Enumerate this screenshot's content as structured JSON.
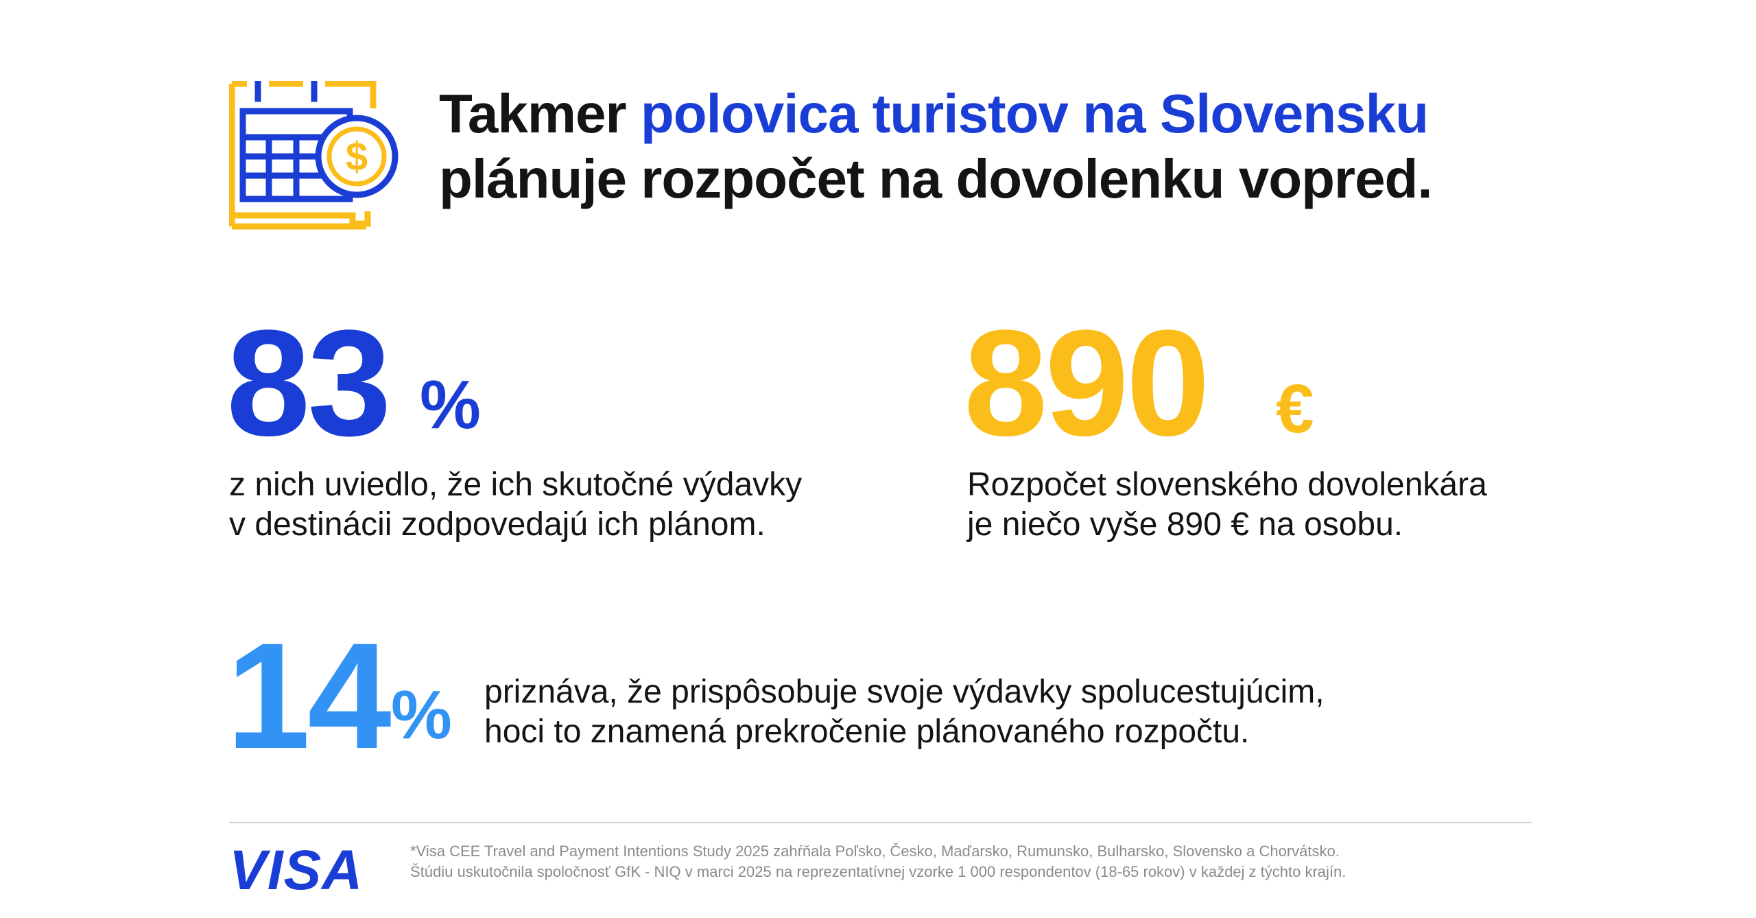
{
  "headline": {
    "line1_plain": "Takmer ",
    "line1_accent": "polovica turistov na Slovensku",
    "line2": "plánuje rozpočet na dovolenku vopred."
  },
  "stats": {
    "s83": {
      "value": "83",
      "unit": "%",
      "desc_line1": "z nich uviedlo, že ich skutočné výdavky",
      "desc_line2": "v destinácii zodpovedajú ich plánom."
    },
    "s890": {
      "value": "890",
      "unit": "€",
      "desc_line1": "Rozpočet slovenského dovolenkára",
      "desc_line2": "je niečo vyše 890 € na osobu."
    },
    "s14": {
      "value": "14",
      "unit": "%",
      "desc_line1": "priznáva, že prispôsobuje svoje výdavky spolucestujúcim,",
      "desc_line2": "hoci to znamená prekročenie plánovaného rozpočtu."
    }
  },
  "footer": {
    "logo": "VISA",
    "note_line1": "*Visa CEE Travel and Payment Intentions Study 2025 zahŕňala Poľsko, Česko, Maďarsko, Rumunsko, Bulharsko, Slovensko a Chorvátsko.",
    "note_line2": "Štúdiu uskutočnila spoločnosť GfK - NIQ v marci 2025 na reprezentatívnej vzorke 1 000 respondentov (18-65 rokov) v každej z týchto krajín."
  },
  "icons": {
    "header_icon": "calendar-dollar-icon"
  },
  "colors": {
    "blue": "#1a3dd6",
    "yellow": "#fbbd19",
    "light_blue": "#3293f4",
    "text": "#141414",
    "muted": "#8a8a8a"
  }
}
